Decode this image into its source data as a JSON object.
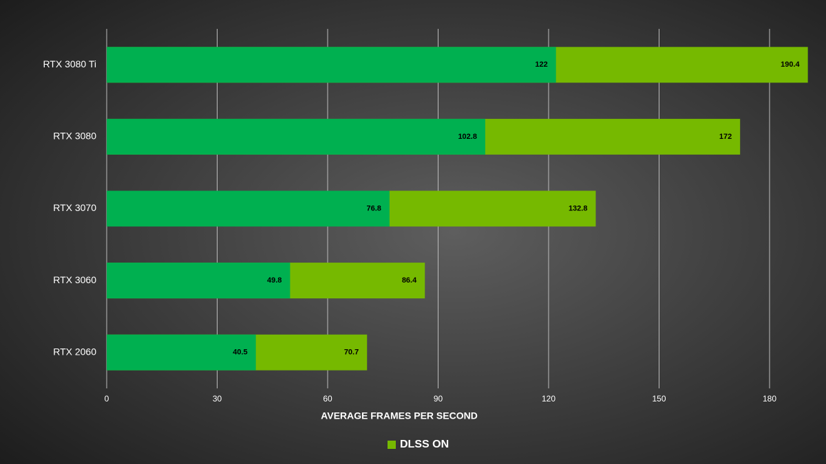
{
  "chart_data": {
    "type": "bar",
    "orientation": "horizontal",
    "x_label": "AVERAGE FRAMES PER SECOND",
    "categories": [
      "RTX 3080 Ti",
      "RTX 3080",
      "RTX 3070",
      "RTX 3060",
      "RTX 2060"
    ],
    "series": [
      {
        "name": "DLSS ON",
        "color": "#76b900",
        "values": [
          190.4,
          172,
          132.8,
          86.4,
          70.7
        ]
      },
      {
        "color": "#00b050",
        "values": [
          122,
          102.8,
          76.8,
          49.8,
          40.5
        ]
      }
    ],
    "xlim": [
      0,
      195
    ],
    "xticks": [
      0,
      30,
      60,
      90,
      120,
      150,
      180
    ],
    "grid": true
  }
}
